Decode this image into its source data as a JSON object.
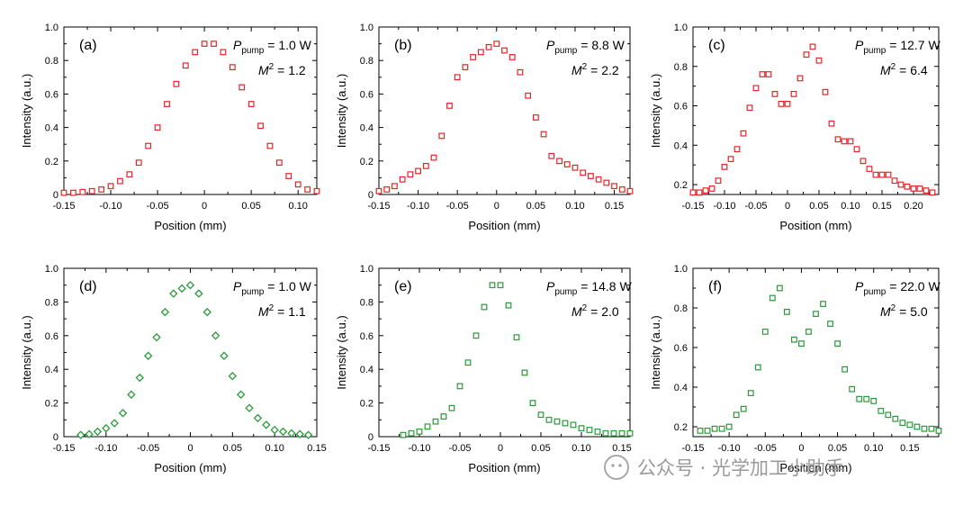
{
  "colors": {
    "red": "#e8242a",
    "green": "#2a9a3a",
    "wm": "#b0b0b0"
  },
  "watermark": "公众号 · 光学加工小助手",
  "chart_data": [
    {
      "type": "scatter",
      "panel": "(a)",
      "marker": "square",
      "color": "red",
      "pump_label": "P",
      "pump_sub": "pump",
      "pump_value": " = 1.0 W",
      "m2_label": "M",
      "m2_sup": "2",
      "m2_value": " = 1.2",
      "xlabel": "Position (mm)",
      "ylabel": "Intensity (a.u.)",
      "xlim": [
        -0.15,
        0.12
      ],
      "ylim": [
        0,
        1.0
      ],
      "xticks": [
        -0.15,
        -0.1,
        -0.05,
        0,
        0.05,
        0.1
      ],
      "xtick_labels": [
        "-0.15",
        "-0.10",
        "-0.05",
        "0",
        "0.05",
        "0.10"
      ],
      "yticks": [
        0,
        0.2,
        0.4,
        0.6,
        0.8,
        1.0
      ],
      "ytick_labels": [
        "0",
        "0.2",
        "0.4",
        "0.6",
        "0.8",
        "1.0"
      ],
      "x": [
        -0.15,
        -0.14,
        -0.13,
        -0.12,
        -0.11,
        -0.1,
        -0.09,
        -0.08,
        -0.07,
        -0.06,
        -0.05,
        -0.04,
        -0.03,
        -0.02,
        -0.01,
        0,
        0.01,
        0.02,
        0.03,
        0.04,
        0.05,
        0.06,
        0.07,
        0.08,
        0.09,
        0.1,
        0.11,
        0.12
      ],
      "y": [
        0.01,
        0.01,
        0.015,
        0.02,
        0.03,
        0.05,
        0.08,
        0.12,
        0.19,
        0.29,
        0.4,
        0.54,
        0.66,
        0.77,
        0.85,
        0.9,
        0.9,
        0.85,
        0.76,
        0.64,
        0.54,
        0.41,
        0.29,
        0.19,
        0.11,
        0.06,
        0.03,
        0.02
      ]
    },
    {
      "type": "scatter",
      "panel": "(b)",
      "marker": "square",
      "color": "red",
      "pump_label": "P",
      "pump_sub": "pump",
      "pump_value": " = 8.8 W",
      "m2_label": "M",
      "m2_sup": "2",
      "m2_value": " = 2.2",
      "xlabel": "Position (mm)",
      "ylabel": "Intensity (a.u.)",
      "xlim": [
        -0.15,
        0.17
      ],
      "ylim": [
        0,
        1.0
      ],
      "xticks": [
        -0.15,
        -0.1,
        -0.05,
        0,
        0.05,
        0.1,
        0.15
      ],
      "xtick_labels": [
        "-0.15",
        "-0.10",
        "-0.05",
        "0",
        "0.05",
        "0.10",
        "0.15"
      ],
      "yticks": [
        0,
        0.2,
        0.4,
        0.6,
        0.8,
        1.0
      ],
      "ytick_labels": [
        "0",
        "0.2",
        "0.4",
        "0.6",
        "0.8",
        "1.0"
      ],
      "x": [
        -0.15,
        -0.14,
        -0.13,
        -0.12,
        -0.11,
        -0.1,
        -0.09,
        -0.08,
        -0.07,
        -0.06,
        -0.05,
        -0.04,
        -0.03,
        -0.02,
        -0.01,
        0,
        0.01,
        0.02,
        0.03,
        0.04,
        0.05,
        0.06,
        0.07,
        0.08,
        0.09,
        0.1,
        0.11,
        0.12,
        0.13,
        0.14,
        0.15,
        0.16,
        0.17
      ],
      "y": [
        0.02,
        0.03,
        0.05,
        0.09,
        0.12,
        0.14,
        0.17,
        0.22,
        0.35,
        0.53,
        0.7,
        0.76,
        0.82,
        0.85,
        0.88,
        0.9,
        0.86,
        0.82,
        0.73,
        0.59,
        0.46,
        0.36,
        0.23,
        0.2,
        0.18,
        0.16,
        0.13,
        0.11,
        0.09,
        0.07,
        0.05,
        0.03,
        0.02
      ]
    },
    {
      "type": "scatter",
      "panel": "(c)",
      "marker": "square",
      "color": "red",
      "pump_label": "P",
      "pump_sub": "pump",
      "pump_value": " = 12.7 W",
      "m2_label": "M",
      "m2_sup": "2",
      "m2_value": " = 6.4",
      "xlabel": "Position (mm)",
      "ylabel": "Intensity (a.u.)",
      "xlim": [
        -0.15,
        0.24
      ],
      "ylim": [
        0.15,
        1.0
      ],
      "xticks": [
        -0.15,
        -0.1,
        -0.05,
        0,
        0.05,
        0.1,
        0.15,
        0.2
      ],
      "xtick_labels": [
        "-0.15",
        "-0.10",
        "-0.05",
        "0",
        "0.05",
        "0.10",
        "0.15",
        "0.20"
      ],
      "yticks": [
        0.2,
        0.4,
        0.6,
        0.8,
        1.0
      ],
      "ytick_labels": [
        "0.2",
        "0.4",
        "0.6",
        "0.8",
        "1.0"
      ],
      "x": [
        -0.15,
        -0.14,
        -0.13,
        -0.12,
        -0.11,
        -0.1,
        -0.09,
        -0.08,
        -0.07,
        -0.06,
        -0.05,
        -0.04,
        -0.03,
        -0.02,
        -0.01,
        0,
        0.01,
        0.02,
        0.03,
        0.04,
        0.05,
        0.06,
        0.07,
        0.08,
        0.09,
        0.1,
        0.11,
        0.12,
        0.13,
        0.14,
        0.15,
        0.16,
        0.17,
        0.18,
        0.19,
        0.2,
        0.21,
        0.22,
        0.23
      ],
      "y": [
        0.16,
        0.16,
        0.17,
        0.18,
        0.22,
        0.29,
        0.33,
        0.38,
        0.46,
        0.59,
        0.69,
        0.76,
        0.76,
        0.66,
        0.61,
        0.61,
        0.66,
        0.74,
        0.86,
        0.9,
        0.83,
        0.67,
        0.51,
        0.43,
        0.42,
        0.42,
        0.38,
        0.32,
        0.28,
        0.25,
        0.25,
        0.25,
        0.22,
        0.2,
        0.19,
        0.18,
        0.18,
        0.17,
        0.16
      ]
    },
    {
      "type": "scatter",
      "panel": "(d)",
      "marker": "diamond",
      "color": "green",
      "pump_label": "P",
      "pump_sub": "pump",
      "pump_value": " = 1.0 W",
      "m2_label": "M",
      "m2_sup": "2",
      "m2_value": " = 1.1",
      "xlabel": "Position (mm)",
      "ylabel": "Intensity (a.u.)",
      "xlim": [
        -0.15,
        0.15
      ],
      "ylim": [
        0,
        1.0
      ],
      "xticks": [
        -0.15,
        -0.1,
        -0.05,
        0,
        0.05,
        0.1,
        0.15
      ],
      "xtick_labels": [
        "-0.15",
        "-0.10",
        "-0.05",
        "0",
        "0.05",
        "0.10",
        "0.15"
      ],
      "yticks": [
        0,
        0.2,
        0.4,
        0.6,
        0.8,
        1.0
      ],
      "ytick_labels": [
        "0",
        "0.2",
        "0.4",
        "0.6",
        "0.8",
        "1.0"
      ],
      "x": [
        -0.13,
        -0.12,
        -0.11,
        -0.1,
        -0.09,
        -0.08,
        -0.07,
        -0.06,
        -0.05,
        -0.04,
        -0.03,
        -0.02,
        -0.01,
        0,
        0.01,
        0.02,
        0.03,
        0.04,
        0.05,
        0.06,
        0.07,
        0.08,
        0.09,
        0.1,
        0.11,
        0.12,
        0.13,
        0.14
      ],
      "y": [
        0.01,
        0.015,
        0.03,
        0.05,
        0.08,
        0.14,
        0.25,
        0.35,
        0.48,
        0.59,
        0.74,
        0.85,
        0.88,
        0.9,
        0.85,
        0.74,
        0.6,
        0.48,
        0.36,
        0.25,
        0.17,
        0.11,
        0.07,
        0.04,
        0.03,
        0.02,
        0.015,
        0.01
      ]
    },
    {
      "type": "scatter",
      "panel": "(e)",
      "marker": "square",
      "color": "green",
      "pump_label": "P",
      "pump_sub": "pump",
      "pump_value": " = 14.8 W",
      "m2_label": "M",
      "m2_sup": "2",
      "m2_value": " = 2.0",
      "xlabel": "Position (mm)",
      "ylabel": "Intensity (a.u.)",
      "xlim": [
        -0.15,
        0.16
      ],
      "ylim": [
        0,
        1.0
      ],
      "xticks": [
        -0.15,
        -0.1,
        -0.05,
        0,
        0.05,
        0.1,
        0.15
      ],
      "xtick_labels": [
        "-0.15",
        "-0.10",
        "-0.05",
        "0",
        "0.05",
        "0.10",
        "0.15"
      ],
      "yticks": [
        0,
        0.2,
        0.4,
        0.6,
        0.8,
        1.0
      ],
      "ytick_labels": [
        "0",
        "0.2",
        "0.4",
        "0.6",
        "0.8",
        "1.0"
      ],
      "x": [
        -0.12,
        -0.11,
        -0.1,
        -0.09,
        -0.08,
        -0.07,
        -0.06,
        -0.05,
        -0.04,
        -0.03,
        -0.02,
        -0.01,
        0,
        0.01,
        0.02,
        0.03,
        0.04,
        0.05,
        0.06,
        0.07,
        0.08,
        0.09,
        0.1,
        0.11,
        0.12,
        0.13,
        0.14,
        0.15,
        0.16
      ],
      "y": [
        0.01,
        0.02,
        0.03,
        0.06,
        0.09,
        0.12,
        0.17,
        0.3,
        0.44,
        0.6,
        0.77,
        0.9,
        0.9,
        0.78,
        0.59,
        0.38,
        0.2,
        0.13,
        0.1,
        0.09,
        0.08,
        0.07,
        0.05,
        0.04,
        0.03,
        0.02,
        0.02,
        0.02,
        0.02
      ]
    },
    {
      "type": "scatter",
      "panel": "(f)",
      "marker": "square",
      "color": "green",
      "pump_label": "P",
      "pump_sub": "pump",
      "pump_value": " = 22.0 W",
      "m2_label": "M",
      "m2_sup": "2",
      "m2_value": " = 5.0",
      "xlabel": "Position (mm)",
      "ylabel": "Intensity (a.u.)",
      "xlim": [
        -0.15,
        0.19
      ],
      "ylim": [
        0.15,
        1.0
      ],
      "xticks": [
        -0.15,
        -0.1,
        -0.05,
        0,
        0.05,
        0.1,
        0.15
      ],
      "xtick_labels": [
        "-0.15",
        "-0.10",
        "-0.05",
        "0",
        "0.05",
        "0.10",
        "0.15"
      ],
      "yticks": [
        0.2,
        0.4,
        0.6,
        0.8,
        1.0
      ],
      "ytick_labels": [
        "0.2",
        "0.4",
        "0.6",
        "0.8",
        "1.0"
      ],
      "x": [
        -0.14,
        -0.13,
        -0.12,
        -0.11,
        -0.1,
        -0.09,
        -0.08,
        -0.07,
        -0.06,
        -0.05,
        -0.04,
        -0.03,
        -0.02,
        -0.01,
        0,
        0.01,
        0.02,
        0.03,
        0.04,
        0.05,
        0.06,
        0.07,
        0.08,
        0.09,
        0.1,
        0.11,
        0.12,
        0.13,
        0.14,
        0.15,
        0.16,
        0.17,
        0.18,
        0.19
      ],
      "y": [
        0.18,
        0.18,
        0.19,
        0.19,
        0.2,
        0.26,
        0.29,
        0.37,
        0.5,
        0.68,
        0.85,
        0.9,
        0.78,
        0.64,
        0.62,
        0.68,
        0.77,
        0.82,
        0.72,
        0.62,
        0.49,
        0.39,
        0.34,
        0.34,
        0.33,
        0.28,
        0.26,
        0.24,
        0.22,
        0.21,
        0.2,
        0.19,
        0.19,
        0.18
      ]
    }
  ]
}
